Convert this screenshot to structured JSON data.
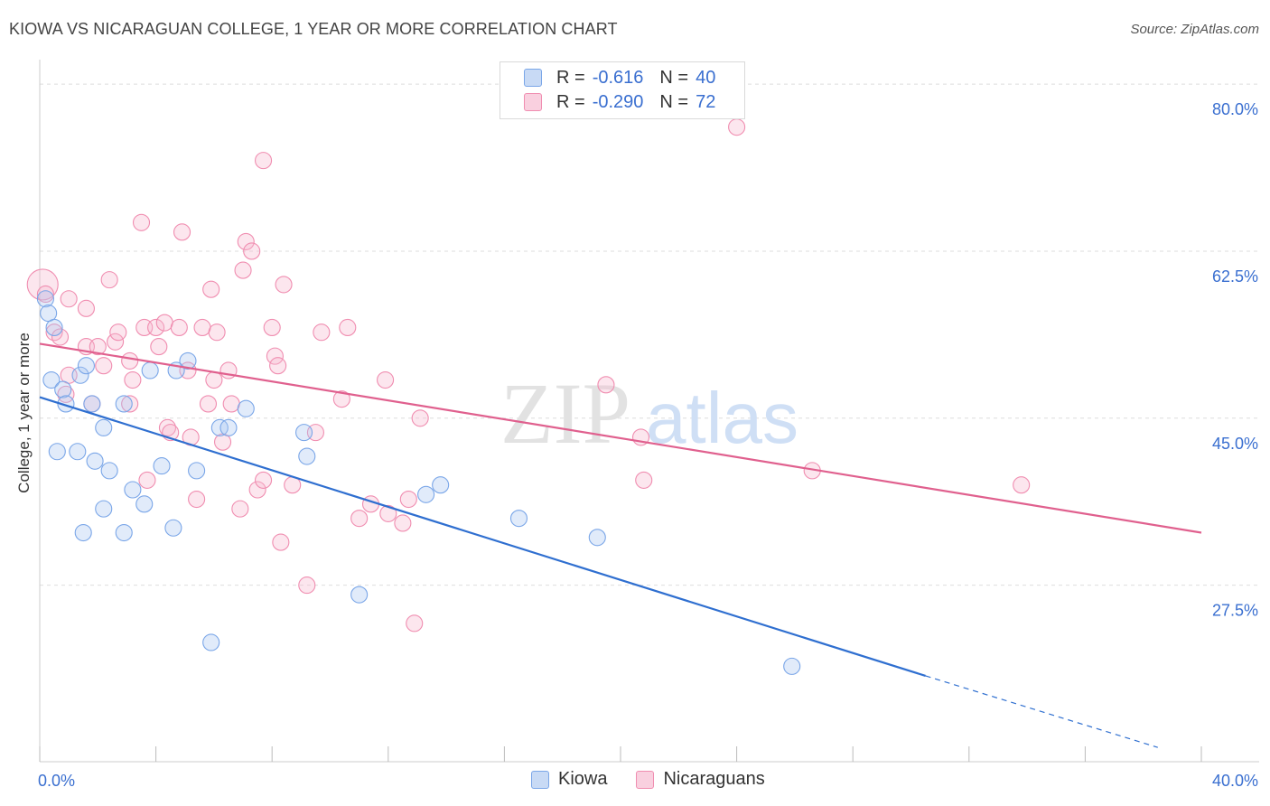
{
  "title": "KIOWA VS NICARAGUAN COLLEGE, 1 YEAR OR MORE CORRELATION CHART",
  "source": "Source: ZipAtlas.com",
  "watermark": {
    "zip": "ZIP",
    "atlas": "atlas"
  },
  "legend": {
    "rows": [
      {
        "r_label": "R =",
        "r_value": "-0.616",
        "n_label": "N =",
        "n_value": "40"
      },
      {
        "r_label": "R =",
        "r_value": "-0.290",
        "n_label": "N =",
        "n_value": "72"
      }
    ]
  },
  "bottom_legend": {
    "kiowa": "Kiowa",
    "nicaraguans": "Nicaraguans"
  },
  "chart_data": {
    "type": "scatter",
    "title": "KIOWA VS NICARAGUAN COLLEGE, 1 YEAR OR MORE CORRELATION CHART",
    "xlabel": "",
    "ylabel": "College, 1 year or more",
    "xlim": [
      0,
      40
    ],
    "ylim": [
      9,
      82
    ],
    "x_tick_labels": [
      "0.0%",
      "40.0%"
    ],
    "y_ticks": [
      27.5,
      45.0,
      62.5,
      80.0
    ],
    "y_tick_labels": [
      "27.5%",
      "45.0%",
      "62.5%",
      "80.0%"
    ],
    "grid": true,
    "legend_position": "top-center",
    "colors": {
      "kiowa": "#7aa6e8",
      "kiowa_line": "#2f6fd0",
      "nicaraguans": "#f08db0",
      "nicaraguans_line": "#e0608e",
      "axis_text": "#3a6fd0"
    },
    "series": [
      {
        "name": "Kiowa",
        "points": [
          [
            0.2,
            57.5
          ],
          [
            0.3,
            56.0
          ],
          [
            0.4,
            49.0
          ],
          [
            0.5,
            54.5
          ],
          [
            0.6,
            41.5
          ],
          [
            0.8,
            48.0
          ],
          [
            0.9,
            46.5
          ],
          [
            1.4,
            49.5
          ],
          [
            1.3,
            41.5
          ],
          [
            1.5,
            33.0
          ],
          [
            1.6,
            50.5
          ],
          [
            1.8,
            46.5
          ],
          [
            1.9,
            40.5
          ],
          [
            2.2,
            35.5
          ],
          [
            2.2,
            44.0
          ],
          [
            2.4,
            39.5
          ],
          [
            2.9,
            46.5
          ],
          [
            2.9,
            33.0
          ],
          [
            3.2,
            37.5
          ],
          [
            3.6,
            36.0
          ],
          [
            3.8,
            50.0
          ],
          [
            4.2,
            40.0
          ],
          [
            4.6,
            33.5
          ],
          [
            4.7,
            50.0
          ],
          [
            5.1,
            51.0
          ],
          [
            5.4,
            39.5
          ],
          [
            5.9,
            21.5
          ],
          [
            6.2,
            44.0
          ],
          [
            6.5,
            44.0
          ],
          [
            7.1,
            46.0
          ],
          [
            9.1,
            43.5
          ],
          [
            9.2,
            41.0
          ],
          [
            11.0,
            26.5
          ],
          [
            13.3,
            37.0
          ],
          [
            13.8,
            38.0
          ],
          [
            16.5,
            34.5
          ],
          [
            19.2,
            32.5
          ],
          [
            25.9,
            19.0
          ]
        ]
      },
      {
        "name": "Nicaraguans",
        "points": [
          [
            0.1,
            59.0
          ],
          [
            0.2,
            58.0
          ],
          [
            0.5,
            54.0
          ],
          [
            0.7,
            53.5
          ],
          [
            0.9,
            47.5
          ],
          [
            1.0,
            57.5
          ],
          [
            1.0,
            49.5
          ],
          [
            1.6,
            52.5
          ],
          [
            1.6,
            56.5
          ],
          [
            1.8,
            46.5
          ],
          [
            2.0,
            52.5
          ],
          [
            2.2,
            50.5
          ],
          [
            2.4,
            59.5
          ],
          [
            2.6,
            53.0
          ],
          [
            2.7,
            54.0
          ],
          [
            3.1,
            46.5
          ],
          [
            3.1,
            51.0
          ],
          [
            3.2,
            49.0
          ],
          [
            3.5,
            65.5
          ],
          [
            3.6,
            54.5
          ],
          [
            3.7,
            38.5
          ],
          [
            4.0,
            54.5
          ],
          [
            4.1,
            52.5
          ],
          [
            4.3,
            55.0
          ],
          [
            4.4,
            44.0
          ],
          [
            4.5,
            43.5
          ],
          [
            4.8,
            54.5
          ],
          [
            4.9,
            64.5
          ],
          [
            5.1,
            50.0
          ],
          [
            5.2,
            43.0
          ],
          [
            5.4,
            36.5
          ],
          [
            5.6,
            54.5
          ],
          [
            5.8,
            46.5
          ],
          [
            5.9,
            58.5
          ],
          [
            6.0,
            49.0
          ],
          [
            6.1,
            54.0
          ],
          [
            6.3,
            42.5
          ],
          [
            6.5,
            50.0
          ],
          [
            6.6,
            46.5
          ],
          [
            6.9,
            35.5
          ],
          [
            7.0,
            60.5
          ],
          [
            7.1,
            63.5
          ],
          [
            7.3,
            62.5
          ],
          [
            7.5,
            37.5
          ],
          [
            7.7,
            72.0
          ],
          [
            7.7,
            38.5
          ],
          [
            8.0,
            54.5
          ],
          [
            8.1,
            51.5
          ],
          [
            8.2,
            50.5
          ],
          [
            8.3,
            32.0
          ],
          [
            8.4,
            59.0
          ],
          [
            8.7,
            38.0
          ],
          [
            9.2,
            27.5
          ],
          [
            9.5,
            43.5
          ],
          [
            9.7,
            54.0
          ],
          [
            10.4,
            47.0
          ],
          [
            10.6,
            54.5
          ],
          [
            11.0,
            34.5
          ],
          [
            11.4,
            36.0
          ],
          [
            12.0,
            35.0
          ],
          [
            12.5,
            34.0
          ],
          [
            12.7,
            36.5
          ],
          [
            12.9,
            23.5
          ],
          [
            13.1,
            45.0
          ],
          [
            19.5,
            48.5
          ],
          [
            20.7,
            43.0
          ],
          [
            20.8,
            38.5
          ],
          [
            24.0,
            75.5
          ],
          [
            26.6,
            39.5
          ],
          [
            33.8,
            38.0
          ],
          [
            11.9,
            49.0
          ]
        ]
      }
    ],
    "trend_lines": [
      {
        "name": "Kiowa",
        "x0": 0,
        "y0": 47.2,
        "x1": 30.5,
        "y1": 18.0,
        "dash_to_x": 38.5,
        "dash_to_y": 10.5
      },
      {
        "name": "Nicaraguans",
        "x0": 0,
        "y0": 52.8,
        "x1": 40,
        "y1": 33.0
      }
    ]
  }
}
